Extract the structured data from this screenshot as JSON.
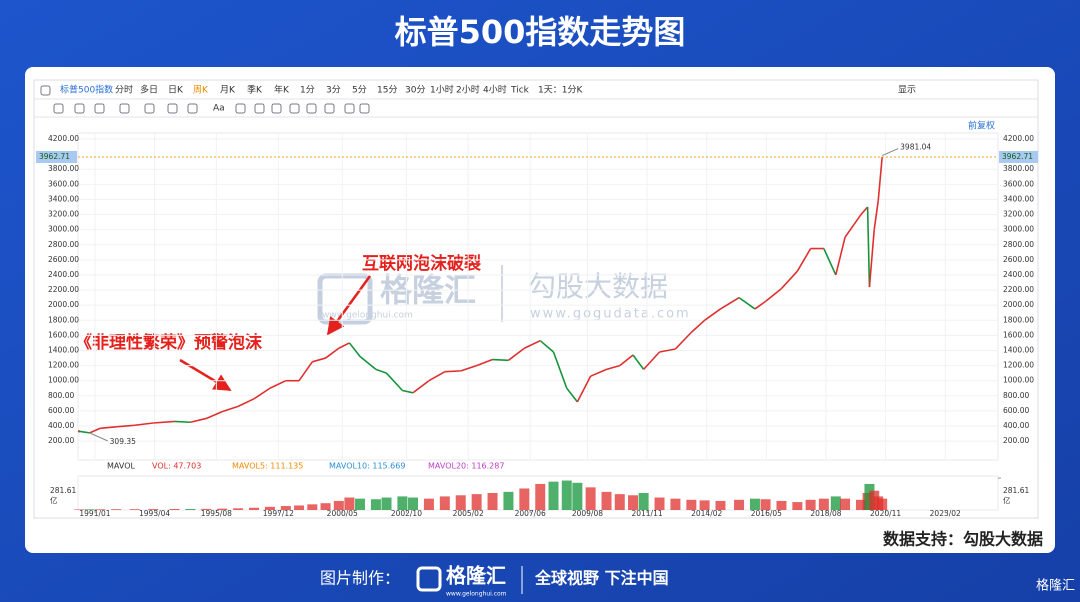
{
  "title": "标普500指数走势图",
  "toolbar": {
    "row1": [
      "标普500指数",
      "分时",
      "多日",
      "日K",
      "周K",
      "月K",
      "季K",
      "年K",
      "1分",
      "3分",
      "5分",
      "15分",
      "30分",
      "1小时",
      "2小时",
      "4小时",
      "Tick",
      "1天：1分K"
    ],
    "selected": "周K",
    "display": "显示",
    "adjust": "前复权",
    "font": "Aa"
  },
  "volume_legend": {
    "name": "MAVOL",
    "items": [
      "VOL: 47.703",
      "MAVOL5: 111.135",
      "MAVOL10: 115.669",
      "MAVOL20: 116.287"
    ]
  },
  "chart_data": {
    "type": "line",
    "x": [
      1990.4,
      1990.8,
      1991.2,
      1991.8,
      1992.5,
      1993.2,
      1994.0,
      1994.6,
      1995.2,
      1995.8,
      1996.4,
      1997.0,
      1997.6,
      1998.2,
      1998.7,
      1999.2,
      1999.7,
      2000.2,
      2000.6,
      2001.0,
      2001.6,
      2002.0,
      2002.6,
      2003.0,
      2003.6,
      2004.2,
      2004.8,
      2005.4,
      2006.0,
      2006.6,
      2007.2,
      2007.8,
      2008.3,
      2008.8,
      2009.2,
      2009.7,
      2010.3,
      2010.8,
      2011.3,
      2011.7,
      2012.3,
      2012.9,
      2013.5,
      2014.0,
      2014.6,
      2015.3,
      2015.9,
      2016.3,
      2016.9,
      2017.5,
      2018.0,
      2018.5,
      2018.95,
      2019.3,
      2019.9,
      2020.15,
      2020.22,
      2020.4,
      2020.55,
      2020.7
    ],
    "values": [
      330,
      309.35,
      370,
      390,
      410,
      440,
      460,
      450,
      500,
      590,
      660,
      760,
      900,
      1000,
      1000,
      1250,
      1300,
      1430,
      1500,
      1320,
      1150,
      1100,
      870,
      840,
      1000,
      1120,
      1130,
      1200,
      1280,
      1270,
      1430,
      1530,
      1380,
      900,
      720,
      1060,
      1150,
      1200,
      1340,
      1150,
      1380,
      1420,
      1640,
      1800,
      1950,
      2100,
      1950,
      2050,
      2220,
      2450,
      2750,
      2750,
      2400,
      2900,
      3200,
      3300,
      2240,
      3000,
      3380,
      3962.71
    ],
    "volume": [
      5,
      6,
      6,
      7,
      7,
      8,
      9,
      9,
      10,
      12,
      15,
      20,
      28,
      35,
      40,
      50,
      60,
      80,
      110,
      100,
      95,
      110,
      120,
      110,
      100,
      120,
      130,
      140,
      150,
      160,
      190,
      230,
      250,
      260,
      240,
      200,
      160,
      140,
      130,
      150,
      110,
      100,
      90,
      85,
      80,
      90,
      100,
      95,
      80,
      70,
      90,
      100,
      120,
      100,
      90,
      150,
      230,
      170,
      120,
      100
    ],
    "up_color": "#e0302e",
    "down_color": "#14953a",
    "xlim": [
      1990.36,
      2025.07
    ],
    "xticks": [
      {
        "value": 1991.0,
        "label": "1991/01"
      },
      {
        "value": 1993.25,
        "label": "1993/04"
      },
      {
        "value": 1995.58,
        "label": "1995/08"
      },
      {
        "value": 1997.92,
        "label": "1997/12"
      },
      {
        "value": 2000.33,
        "label": "2000/05"
      },
      {
        "value": 2002.75,
        "label": "2002/10"
      },
      {
        "value": 2005.08,
        "label": "2005/02"
      },
      {
        "value": 2007.42,
        "label": "2007/06"
      },
      {
        "value": 2009.58,
        "label": "2009/08"
      },
      {
        "value": 2011.83,
        "label": "2011/11"
      },
      {
        "value": 2014.08,
        "label": "2014/02"
      },
      {
        "value": 2016.33,
        "label": "2016/05"
      },
      {
        "value": 2018.58,
        "label": "2018/08"
      },
      {
        "value": 2020.83,
        "label": "2020/11"
      },
      {
        "value": 2023.08,
        "label": "2023/02"
      }
    ],
    "ylim": [
      -50,
      4280
    ],
    "yticks": [
      {
        "value": 200,
        "label": "200.00"
      },
      {
        "value": 400,
        "label": "400.00"
      },
      {
        "value": 600,
        "label": "600.00"
      },
      {
        "value": 800,
        "label": "800.00"
      },
      {
        "value": 1000,
        "label": "1000.00"
      },
      {
        "value": 1200,
        "label": "1200.00"
      },
      {
        "value": 1400,
        "label": "1400.00"
      },
      {
        "value": 1600,
        "label": "1600.00"
      },
      {
        "value": 1800,
        "label": "1800.00"
      },
      {
        "value": 2000,
        "label": "2000.00"
      },
      {
        "value": 2200,
        "label": "2200.00"
      },
      {
        "value": 2400,
        "label": "2400.00"
      },
      {
        "value": 2600,
        "label": "2600.00"
      },
      {
        "value": 2800,
        "label": "2800.00"
      },
      {
        "value": 3000,
        "label": "3000.00"
      },
      {
        "value": 3200,
        "label": "3200.00"
      },
      {
        "value": 3400,
        "label": "3400.00"
      },
      {
        "value": 3600,
        "label": "3600.00"
      },
      {
        "value": 3800,
        "label": "3800.00"
      },
      {
        "value": 4200,
        "label": "4200.00"
      }
    ],
    "last_price": 3962.71,
    "high": 3981.04,
    "high_x": 2020.7,
    "vol_ylim": [
      0,
      300
    ],
    "vol_ticks": [
      281.61
    ],
    "vol_unit": "亿",
    "grid": true,
    "annotations": [
      "《非理性繁荣》预警泡沫",
      "互联网泡沫破裂"
    ]
  },
  "watermarks": {
    "brand": "格隆汇",
    "brand_url": "www.gelonghui.com",
    "data_brand": "勾股大数据",
    "data_url": "www.gogudata.com"
  },
  "footer": {
    "source": "数据支持：勾股大数据",
    "made_by": "图片制作：",
    "logo": "格隆汇",
    "logo_url": "www.gelonghui.com",
    "slogan": "全球视野 下注中国",
    "corner": "格隆汇"
  }
}
